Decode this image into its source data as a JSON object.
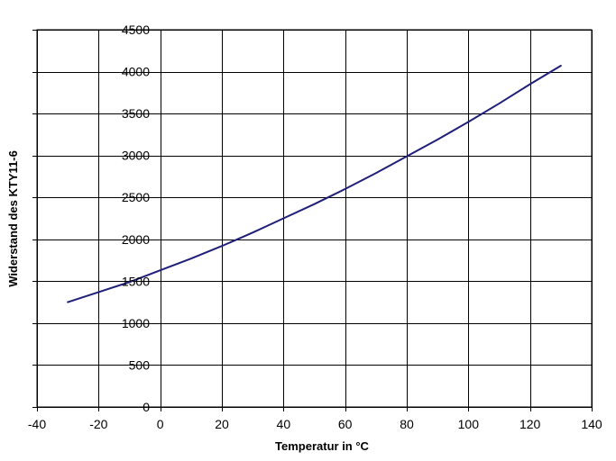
{
  "chart_data": {
    "type": "line",
    "xlabel": "Temperatur in °C",
    "ylabel": "Widerstand des KTY11-6",
    "xlim": [
      -40,
      140
    ],
    "ylim": [
      0,
      4500
    ],
    "xticks": [
      -40,
      -20,
      0,
      20,
      40,
      60,
      80,
      100,
      120,
      140
    ],
    "yticks": [
      0,
      500,
      1000,
      1500,
      2000,
      2500,
      3000,
      3500,
      4000,
      4500
    ],
    "grid": true,
    "legend": "none",
    "colors": {
      "line": "#1f1f7a",
      "grid": "#000000",
      "background": "#ffffff"
    },
    "series": [
      {
        "x": [
          -30,
          -20,
          -10,
          0,
          10,
          20,
          25,
          30,
          40,
          50,
          60,
          70,
          80,
          90,
          100,
          110,
          120,
          130
        ],
        "y": [
          1250,
          1370,
          1490,
          1630,
          1770,
          1920,
          2000,
          2080,
          2250,
          2420,
          2600,
          2790,
          2990,
          3190,
          3400,
          3620,
          3850,
          4070
        ]
      }
    ]
  }
}
